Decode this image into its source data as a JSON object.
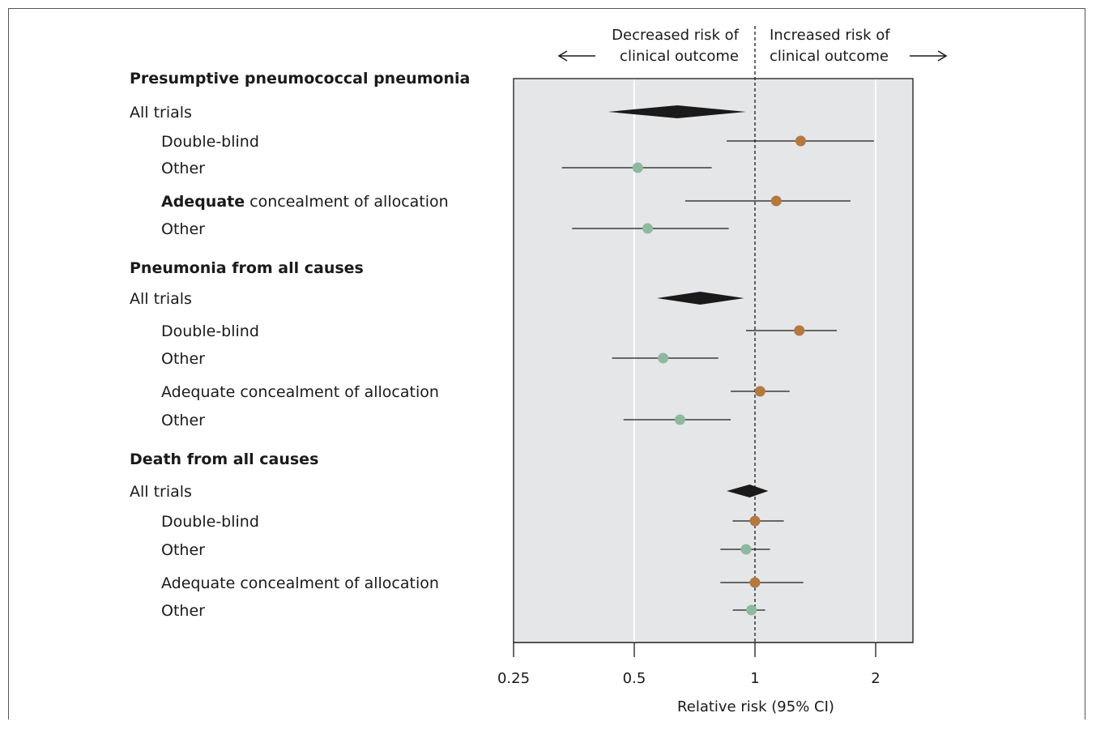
{
  "chart_data": {
    "type": "forest",
    "xlabel": "Relative risk (95% CI)",
    "xscale": "log2",
    "xlim": [
      0.25,
      2.5
    ],
    "ticks": [
      0.25,
      0.5,
      1,
      2
    ],
    "tick_labels": [
      "0.25",
      "0.5",
      "1",
      "2"
    ],
    "reference_line": 1,
    "annotations": {
      "left_line1": "Decreased risk of",
      "left_line2": "clinical outcome",
      "right_line1": "Increased risk of",
      "right_line2": "clinical outcome"
    },
    "colors": {
      "double_blind_adequate": "#b5783f",
      "other": "#8fb8a0",
      "pooled": "#1a1a1a",
      "panel_bg": "#e5e6e8"
    },
    "rows": [
      {
        "kind": "header",
        "label": "Presumptive pneumococcal pneumonia"
      },
      {
        "kind": "pooled",
        "label": "All trials",
        "estimate": 0.64,
        "low": 0.43,
        "high": 0.95
      },
      {
        "kind": "study",
        "group": "a",
        "label": "Double-blind",
        "estimate": 1.3,
        "low": 0.85,
        "high": 1.98
      },
      {
        "kind": "study",
        "group": "b",
        "label": "Other",
        "estimate": 0.51,
        "low": 0.33,
        "high": 0.78
      },
      {
        "kind": "study",
        "group": "a",
        "label": "Adequate concealment of allocation",
        "label_bold_prefix": "Adequate",
        "label_rest": " concealment of allocation",
        "estimate": 1.13,
        "low": 0.67,
        "high": 1.73
      },
      {
        "kind": "study",
        "group": "b",
        "label": "Other",
        "estimate": 0.54,
        "low": 0.35,
        "high": 0.86
      },
      {
        "kind": "header",
        "label": "Pneumonia from all causes"
      },
      {
        "kind": "pooled",
        "label": "All trials",
        "estimate": 0.73,
        "low": 0.57,
        "high": 0.94
      },
      {
        "kind": "study",
        "group": "a",
        "label": "Double-blind",
        "estimate": 1.29,
        "low": 0.95,
        "high": 1.6
      },
      {
        "kind": "study",
        "group": "b",
        "label": "Other",
        "estimate": 0.59,
        "low": 0.44,
        "high": 0.81
      },
      {
        "kind": "study",
        "group": "a",
        "label": "Adequate concealment of allocation",
        "estimate": 1.03,
        "low": 0.87,
        "high": 1.22
      },
      {
        "kind": "study",
        "group": "b",
        "label": "Other",
        "estimate": 0.65,
        "low": 0.47,
        "high": 0.87
      },
      {
        "kind": "header",
        "label": "Death from all causes"
      },
      {
        "kind": "pooled",
        "label": "All trials",
        "estimate": 0.97,
        "low": 0.85,
        "high": 1.08
      },
      {
        "kind": "study",
        "group": "a",
        "label": "Double-blind",
        "estimate": 1.0,
        "low": 0.88,
        "high": 1.18
      },
      {
        "kind": "study",
        "group": "b",
        "label": "Other",
        "estimate": 0.95,
        "low": 0.82,
        "high": 1.09
      },
      {
        "kind": "study",
        "group": "a",
        "label": "Adequate concealment of allocation",
        "estimate": 1.0,
        "low": 0.82,
        "high": 1.32
      },
      {
        "kind": "study",
        "group": "b",
        "label": "Other",
        "estimate": 0.98,
        "low": 0.88,
        "high": 1.06
      }
    ]
  }
}
